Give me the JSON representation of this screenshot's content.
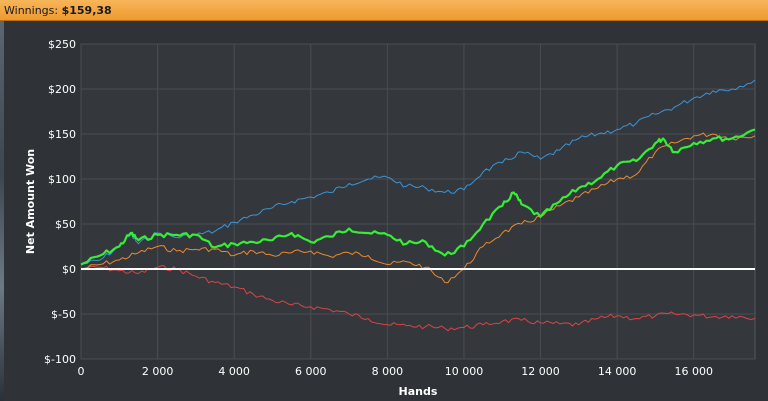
{
  "header": {
    "label": "Winnings:",
    "value": "$159,38"
  },
  "colors": {
    "plot_bg": "#34373b",
    "grid": "#4a4e53",
    "zero_line": "#ffffff",
    "total": "#35ee35",
    "showdown": "#3a95d8",
    "nonshowdown": "#d84545",
    "allin_ev": "#e88a30"
  },
  "chart_data": {
    "type": "line",
    "xlabel": "Hands",
    "ylabel": "Net Amount Won",
    "xlim": [
      0,
      17600
    ],
    "ylim": [
      -100,
      250
    ],
    "x_ticks": [
      {
        "value": 0,
        "label": "0"
      },
      {
        "value": 2000,
        "label": "2 000"
      },
      {
        "value": 4000,
        "label": "4 000"
      },
      {
        "value": 6000,
        "label": "6 000"
      },
      {
        "value": 8000,
        "label": "8 000"
      },
      {
        "value": 10000,
        "label": "10 000"
      },
      {
        "value": 12000,
        "label": "12 000"
      },
      {
        "value": 14000,
        "label": "14 000"
      },
      {
        "value": 16000,
        "label": "16 000"
      }
    ],
    "y_ticks": [
      {
        "value": 250,
        "label": "$250"
      },
      {
        "value": 200,
        "label": "$200"
      },
      {
        "value": 150,
        "label": "$150"
      },
      {
        "value": 100,
        "label": "$100"
      },
      {
        "value": 50,
        "label": "$50"
      },
      {
        "value": 0,
        "label": "$0"
      },
      {
        "value": -50,
        "label": "$-50"
      },
      {
        "value": -100,
        "label": "$-100"
      }
    ],
    "grid": true,
    "series": [
      {
        "color_key": "showdown",
        "width": 1,
        "x": [
          0,
          500,
          1000,
          1300,
          1500,
          2000,
          2500,
          3000,
          3500,
          4000,
          4500,
          5000,
          5500,
          6000,
          6500,
          7000,
          7500,
          8000,
          8500,
          9000,
          9500,
          10000,
          10500,
          11000,
          11500,
          12000,
          12500,
          13000,
          13500,
          14000,
          14500,
          15000,
          15500,
          16000,
          16500,
          17000,
          17600
        ],
        "y": [
          5,
          10,
          25,
          38,
          28,
          40,
          35,
          38,
          42,
          52,
          60,
          68,
          75,
          80,
          85,
          95,
          100,
          102,
          92,
          90,
          85,
          88,
          108,
          118,
          130,
          122,
          132,
          145,
          150,
          155,
          162,
          172,
          180,
          190,
          198,
          200,
          210
        ]
      },
      {
        "color_key": "nonshowdown",
        "width": 1,
        "x": [
          0,
          500,
          1000,
          1500,
          2000,
          2500,
          3000,
          3500,
          4000,
          4500,
          5000,
          5500,
          6000,
          6500,
          7000,
          7500,
          8000,
          8500,
          9000,
          9500,
          10000,
          10500,
          11000,
          11500,
          12000,
          12500,
          13000,
          13500,
          14000,
          14500,
          15000,
          15500,
          16000,
          16500,
          17000,
          17600
        ],
        "y": [
          0,
          2,
          -2,
          -5,
          2,
          0,
          -8,
          -15,
          -20,
          -28,
          -35,
          -40,
          -42,
          -45,
          -50,
          -55,
          -62,
          -63,
          -64,
          -66,
          -65,
          -62,
          -58,
          -57,
          -60,
          -61,
          -62,
          -55,
          -52,
          -55,
          -52,
          -50,
          -51,
          -53,
          -52,
          -55
        ]
      },
      {
        "color_key": "allin_ev",
        "width": 1,
        "x": [
          0,
          500,
          1000,
          1500,
          2000,
          2500,
          3000,
          3500,
          4000,
          4500,
          5000,
          5500,
          6000,
          6500,
          7000,
          7500,
          8000,
          8500,
          9000,
          9500,
          10000,
          10500,
          11000,
          11500,
          12000,
          12500,
          13000,
          13500,
          14000,
          14500,
          15000,
          15500,
          16000,
          16500,
          17000,
          17600
        ],
        "y": [
          0,
          5,
          10,
          18,
          25,
          20,
          22,
          22,
          15,
          20,
          15,
          18,
          20,
          14,
          18,
          15,
          5,
          8,
          2,
          -15,
          0,
          25,
          40,
          50,
          58,
          70,
          80,
          90,
          100,
          105,
          130,
          140,
          148,
          150,
          145,
          148
        ]
      },
      {
        "color_key": "total",
        "width": 2.2,
        "x": [
          0,
          500,
          1000,
          1300,
          1500,
          2000,
          2500,
          3000,
          3500,
          4000,
          4500,
          5000,
          5500,
          6000,
          6500,
          7000,
          7500,
          8000,
          8500,
          9000,
          9500,
          10000,
          10500,
          11000,
          11300,
          11500,
          12000,
          12500,
          13000,
          13500,
          14000,
          14500,
          15000,
          15200,
          15500,
          16000,
          16500,
          17000,
          17600
        ],
        "y": [
          5,
          15,
          25,
          40,
          32,
          38,
          38,
          38,
          24,
          28,
          30,
          32,
          40,
          30,
          36,
          45,
          40,
          38,
          28,
          30,
          15,
          25,
          50,
          70,
          85,
          72,
          58,
          75,
          90,
          100,
          115,
          120,
          140,
          145,
          130,
          140,
          145,
          145,
          155
        ]
      }
    ]
  }
}
